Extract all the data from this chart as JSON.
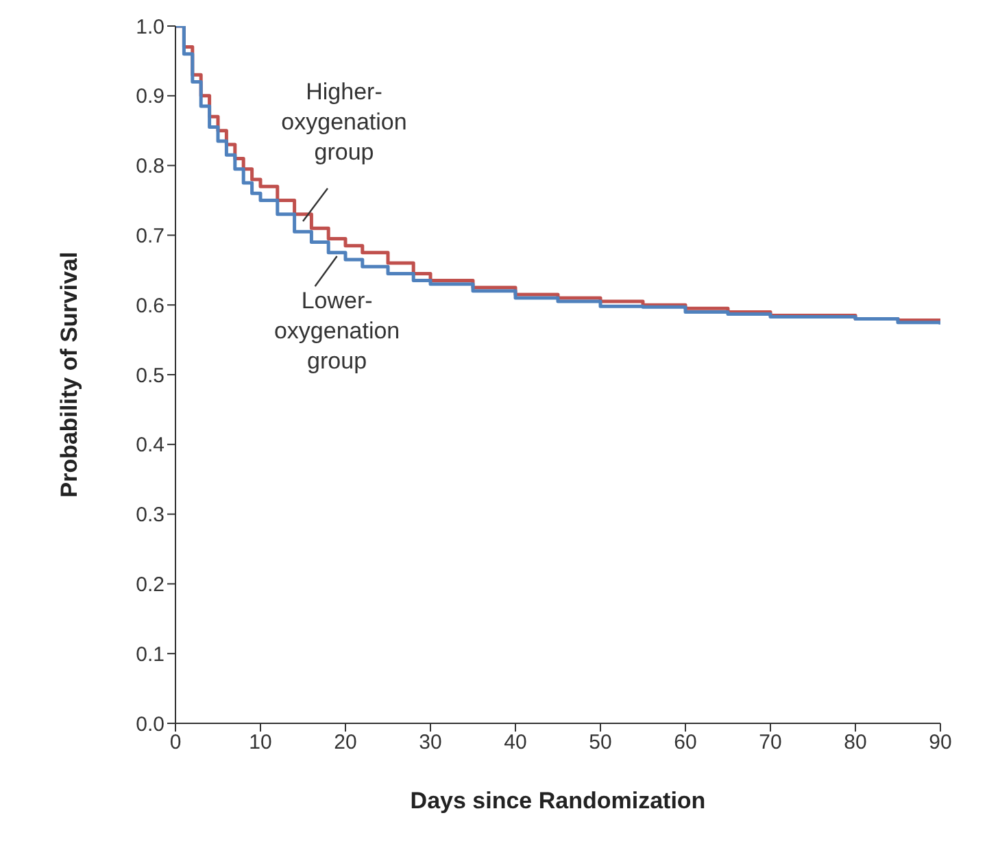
{
  "chart_data": {
    "type": "step",
    "xlabel": "Days since Randomization",
    "ylabel": "Probability of Survival",
    "xlim": [
      0,
      90
    ],
    "xticks": [
      0,
      10,
      20,
      30,
      40,
      50,
      60,
      70,
      80,
      90
    ],
    "ylim": [
      0,
      1
    ],
    "yticks": [
      {
        "value": 0,
        "label": "0.0"
      },
      {
        "value": 0.1,
        "label": "0.1"
      },
      {
        "value": 0.2,
        "label": "0.2"
      },
      {
        "value": 0.3,
        "label": "0.3"
      },
      {
        "value": 0.4,
        "label": "0.4"
      },
      {
        "value": 0.5,
        "label": "0.5"
      },
      {
        "value": 0.6,
        "label": "0.6"
      },
      {
        "value": 0.7,
        "label": "0.7"
      },
      {
        "value": 0.8,
        "label": "0.8"
      },
      {
        "value": 0.9,
        "label": "0.9"
      },
      {
        "value": 1,
        "label": "1.0"
      }
    ],
    "marker": "none",
    "line_style": "solid",
    "series": [
      {
        "color": "#c0504d",
        "x": [
          0,
          1,
          2,
          3,
          4,
          5,
          6,
          7,
          8,
          9,
          10,
          12,
          14,
          16,
          18,
          20,
          22,
          25,
          28,
          30,
          35,
          40,
          45,
          50,
          55,
          60,
          65,
          70,
          78,
          80,
          85,
          90
        ],
        "values": [
          1.0,
          0.97,
          0.93,
          0.9,
          0.87,
          0.85,
          0.83,
          0.81,
          0.795,
          0.78,
          0.77,
          0.75,
          0.73,
          0.71,
          0.695,
          0.685,
          0.675,
          0.66,
          0.645,
          0.635,
          0.625,
          0.615,
          0.61,
          0.605,
          0.6,
          0.595,
          0.59,
          0.585,
          0.585,
          0.58,
          0.578,
          0.575
        ]
      },
      {
        "color": "#4f81bd",
        "x": [
          0,
          1,
          2,
          3,
          4,
          5,
          6,
          7,
          8,
          9,
          10,
          12,
          14,
          16,
          18,
          20,
          22,
          25,
          28,
          30,
          35,
          40,
          45,
          50,
          55,
          60,
          65,
          70,
          80,
          85,
          90
        ],
        "values": [
          1.0,
          0.96,
          0.92,
          0.885,
          0.855,
          0.835,
          0.815,
          0.795,
          0.775,
          0.76,
          0.75,
          0.73,
          0.705,
          0.69,
          0.675,
          0.665,
          0.655,
          0.645,
          0.635,
          0.63,
          0.62,
          0.61,
          0.605,
          0.598,
          0.597,
          0.59,
          0.587,
          0.583,
          0.58,
          0.575,
          0.572
        ]
      }
    ],
    "annotations": [
      {
        "text": "Higher-\noxygenation\ngroup",
        "x": 15,
        "y": 0.72
      },
      {
        "text": "Lower-\noxygenation\ngroup",
        "x": 19,
        "y": 0.67
      }
    ]
  }
}
